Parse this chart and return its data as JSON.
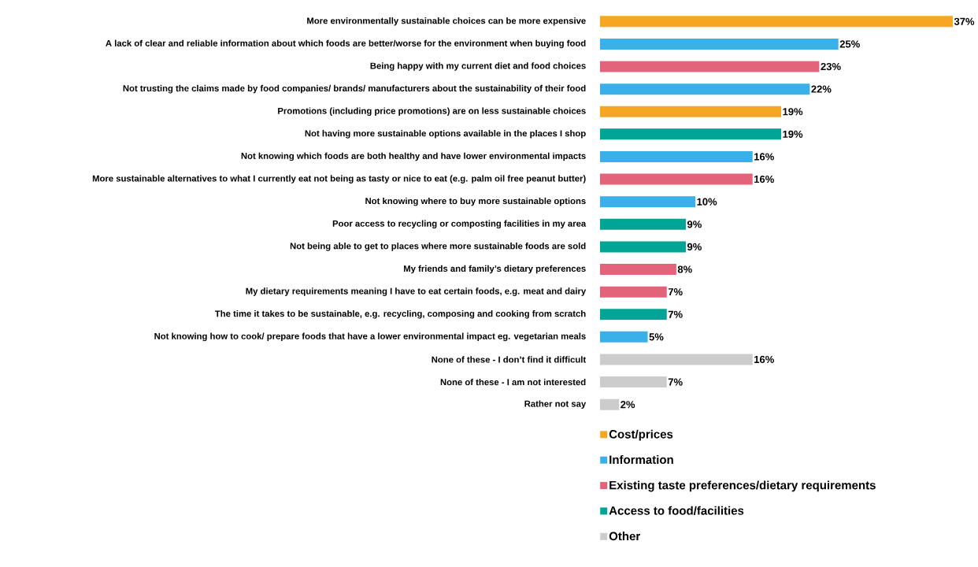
{
  "chart_data": {
    "type": "bar",
    "orientation": "horizontal",
    "data_labels": true,
    "legend": "bottom",
    "categories": [
      "More environmentally sustainable choices can be more expensive",
      "A lack of clear and reliable information about which foods are better/worse for the environment when buying food",
      "Being happy with my current diet and food choices",
      "Not trusting the claims made by food companies/ brands/ manufacturers about the sustainability of their food",
      "Promotions (including price promotions) are on less sustainable choices",
      "Not having more sustainable options available in the places I shop",
      "Not knowing which foods are both healthy and have lower environmental impacts",
      "More sustainable alternatives to what I currently eat not being as tasty or nice to eat (e.g. palm oil free peanut butter)",
      "Not knowing where to buy more sustainable options",
      "Poor access to recycling or composting facilities in my area",
      "Not being able to get to places where more sustainable foods are sold",
      "My friends and family’s dietary preferences",
      "My dietary requirements meaning I have to eat certain foods, e.g. meat and dairy",
      "The time it takes to be sustainable, e.g. recycling, composing and cooking from scratch",
      "Not knowing how to cook/ prepare foods that have a lower environmental impact eg. vegetarian meals",
      "None of these - I don’t find it difficult",
      "None of these - I am not interested",
      "Rather not say"
    ],
    "series": [
      {
        "name": "Cost/prices",
        "color": "#f5a623",
        "values": [
          37,
          null,
          null,
          null,
          19,
          null,
          null,
          null,
          null,
          null,
          null,
          null,
          null,
          null,
          null,
          null,
          null,
          null
        ],
        "value_labels": [
          "37%",
          null,
          null,
          null,
          "19%",
          null,
          null,
          null,
          null,
          null,
          null,
          null,
          null,
          null,
          null,
          null,
          null,
          null
        ]
      },
      {
        "name": "Information",
        "color": "#3ab0e8",
        "values": [
          null,
          25,
          null,
          22,
          null,
          null,
          16,
          null,
          10,
          null,
          null,
          null,
          null,
          null,
          5,
          null,
          null,
          null
        ],
        "value_labels": [
          null,
          "25%",
          null,
          "22%",
          null,
          null,
          "16%",
          null,
          "10%",
          null,
          null,
          null,
          null,
          null,
          "5%",
          null,
          null,
          null
        ]
      },
      {
        "name": "Existing taste preferences/dietary requirements",
        "color": "#e3647a",
        "values": [
          null,
          null,
          23,
          null,
          null,
          null,
          null,
          16,
          null,
          null,
          null,
          8,
          7,
          null,
          null,
          null,
          null,
          null
        ],
        "value_labels": [
          null,
          null,
          "23%",
          null,
          null,
          null,
          null,
          "16%",
          null,
          null,
          null,
          "8%",
          "7%",
          null,
          null,
          null,
          null,
          null
        ]
      },
      {
        "name": "Access to food/facilities",
        "color": "#00a596",
        "values": [
          null,
          null,
          null,
          null,
          null,
          19,
          null,
          null,
          null,
          9,
          9,
          null,
          null,
          7,
          null,
          null,
          null,
          null
        ],
        "value_labels": [
          null,
          null,
          null,
          null,
          null,
          "19%",
          null,
          null,
          null,
          "9%",
          "9%",
          null,
          null,
          "7%",
          null,
          null,
          null,
          null
        ]
      },
      {
        "name": "Other",
        "color": "#cccccc",
        "values": [
          null,
          null,
          null,
          null,
          null,
          null,
          null,
          null,
          null,
          null,
          null,
          null,
          null,
          null,
          null,
          16,
          7,
          2
        ],
        "value_labels": [
          null,
          null,
          null,
          null,
          null,
          null,
          null,
          null,
          null,
          null,
          null,
          null,
          null,
          null,
          null,
          "16%",
          "7%",
          "2%"
        ]
      }
    ]
  }
}
